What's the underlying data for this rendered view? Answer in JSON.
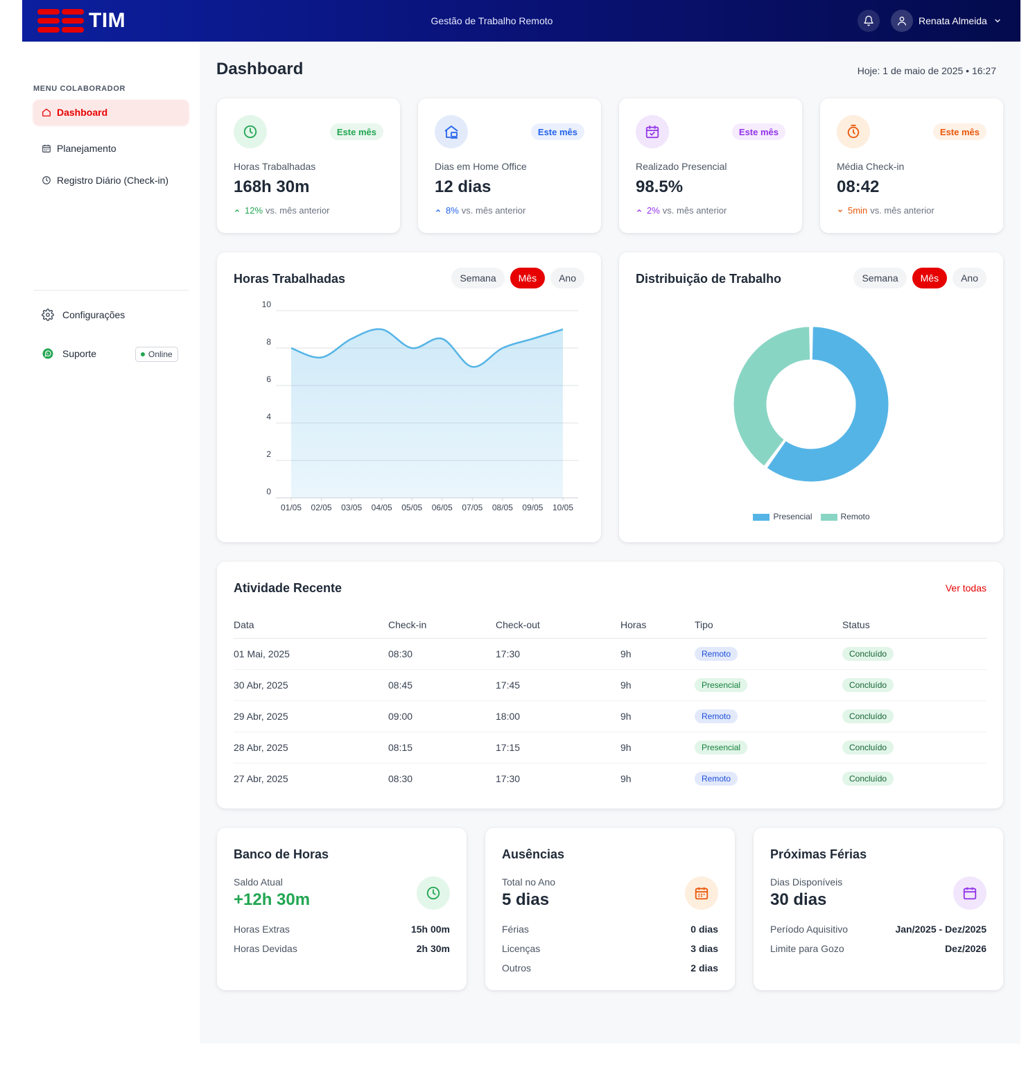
{
  "colors": {
    "brand_red": "#e60000",
    "topbar_blue": "#0a137a",
    "green": "#22a652",
    "blue": "#2563eb",
    "purple": "#9333ea",
    "orange": "#ea580c",
    "presencial": "#55b4e6",
    "remoto": "#89d5c4"
  },
  "topbar": {
    "logo_text": "TIM",
    "title": "Gestão de Trabalho Remoto",
    "user_name": "Renata Almeida",
    "icons": [
      "bell-icon",
      "user-icon",
      "chevron-down-icon"
    ]
  },
  "sidebar": {
    "caption": "MENU COLABORADOR",
    "items": [
      {
        "label": "Dashboard",
        "icon": "home-icon",
        "active": true
      },
      {
        "label": "Planejamento",
        "icon": "calendar-icon"
      },
      {
        "label": "Registro Diário (Check-in)",
        "icon": "clock-icon"
      }
    ],
    "settings_label": "Configurações",
    "support_label": "Suporte",
    "online_label": "Online"
  },
  "header": {
    "title": "Dashboard",
    "today": "Hoje: 1 de maio de 2025  •  16:27"
  },
  "stats": [
    {
      "icon": "clock-icon",
      "pill": "Este mês",
      "label": "Horas Trabalhadas",
      "value": "168h 30m",
      "delta": "12%",
      "delta_dir": "up",
      "delta_text": "vs. mês anterior"
    },
    {
      "icon": "home-office-icon",
      "pill": "Este mês",
      "label": "Dias em Home Office",
      "value": "12 dias",
      "delta": "8%",
      "delta_dir": "up",
      "delta_text": "vs. mês anterior"
    },
    {
      "icon": "calendar-check-icon",
      "pill": "Este mês",
      "label": "Realizado Presencial",
      "value": "98.5%",
      "delta": "2%",
      "delta_dir": "up",
      "delta_text": "vs. mês anterior"
    },
    {
      "icon": "stopwatch-icon",
      "pill": "Este mês",
      "label": "Média Check-in",
      "value": "08:42",
      "delta": "5min",
      "delta_dir": "down",
      "delta_text": "vs. mês anterior"
    }
  ],
  "hours_panel": {
    "title": "Horas Trabalhadas",
    "periods": [
      "Semana",
      "Mês",
      "Ano"
    ],
    "selected": "Mês"
  },
  "dist_panel": {
    "title": "Distribuição de Trabalho",
    "periods": [
      "Semana",
      "Mês",
      "Ano"
    ],
    "selected": "Mês"
  },
  "chart_data": [
    {
      "type": "area",
      "title": "Horas Trabalhadas",
      "x": [
        "01/05",
        "02/05",
        "03/05",
        "04/05",
        "05/05",
        "06/05",
        "07/05",
        "08/05",
        "09/05",
        "10/05"
      ],
      "y_ticks": [
        0,
        2,
        4,
        6,
        8,
        10
      ],
      "ylim": [
        0,
        10
      ],
      "series": [
        {
          "values": [
            8,
            7.5,
            8.5,
            9,
            8,
            8.5,
            7,
            8,
            8.5,
            9
          ]
        }
      ],
      "color": "#55b4e6",
      "grid": true
    },
    {
      "type": "pie",
      "donut": true,
      "title": "Distribuição de Trabalho",
      "labels": [
        "Presencial",
        "Remoto"
      ],
      "values": [
        60,
        40
      ],
      "colors": [
        "#55b4e6",
        "#89d5c4"
      ],
      "legend": "bottom"
    }
  ],
  "activity": {
    "title": "Atividade Recente",
    "see_all": "Ver todas",
    "columns": [
      "Data",
      "Check-in",
      "Check-out",
      "Horas",
      "Tipo",
      "Status"
    ],
    "rows": [
      {
        "date": "01 Mai, 2025",
        "in": "08:30",
        "out": "17:30",
        "hours": "9h",
        "type": "Remoto",
        "status": "Concluído"
      },
      {
        "date": "30 Abr, 2025",
        "in": "08:45",
        "out": "17:45",
        "hours": "9h",
        "type": "Presencial",
        "status": "Concluído"
      },
      {
        "date": "29 Abr, 2025",
        "in": "09:00",
        "out": "18:00",
        "hours": "9h",
        "type": "Remoto",
        "status": "Concluído"
      },
      {
        "date": "28 Abr, 2025",
        "in": "08:15",
        "out": "17:15",
        "hours": "9h",
        "type": "Presencial",
        "status": "Concluído"
      },
      {
        "date": "27 Abr, 2025",
        "in": "08:30",
        "out": "17:30",
        "hours": "9h",
        "type": "Remoto",
        "status": "Concluído"
      }
    ]
  },
  "bank": {
    "title": "Banco de Horas",
    "sub": "Saldo Atual",
    "value": "+12h 30m",
    "rows": [
      {
        "k": "Horas Extras",
        "v": "15h 00m"
      },
      {
        "k": "Horas Devidas",
        "v": "2h 30m"
      }
    ]
  },
  "absences": {
    "title": "Ausências",
    "sub": "Total no Ano",
    "value": "5 dias",
    "rows": [
      {
        "k": "Férias",
        "v": "0 dias"
      },
      {
        "k": "Licenças",
        "v": "3 dias"
      },
      {
        "k": "Outros",
        "v": "2 dias"
      }
    ]
  },
  "vacation": {
    "title": "Próximas Férias",
    "sub": "Dias Disponíveis",
    "value": "30 dias",
    "rows": [
      {
        "k": "Período Aquisitivo",
        "v": "Jan/2025 - Dez/2025"
      },
      {
        "k": "Limite para Gozo",
        "v": "Dez/2026"
      }
    ]
  }
}
